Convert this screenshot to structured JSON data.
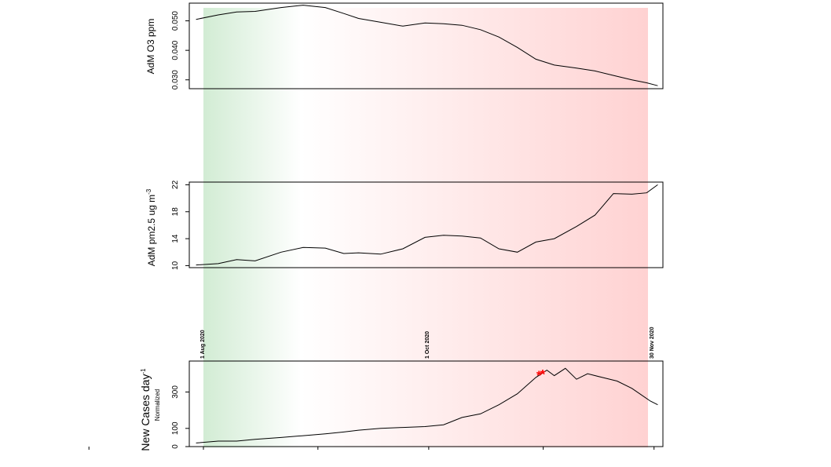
{
  "chart_data": [
    {
      "type": "line",
      "ylabel": "AdM O3 ppm",
      "yticks": [
        "0.030",
        "0.040",
        "0.050"
      ],
      "ylim": [
        0.027,
        0.056
      ],
      "x": [
        "2020-07-30",
        "2020-08-05",
        "2020-08-10",
        "2020-08-15",
        "2020-08-22",
        "2020-08-28",
        "2020-09-03",
        "2020-09-08",
        "2020-09-12",
        "2020-09-18",
        "2020-09-24",
        "2020-09-30",
        "2020-10-05",
        "2020-10-10",
        "2020-10-15",
        "2020-10-20",
        "2020-10-25",
        "2020-10-30",
        "2020-11-04",
        "2020-11-10",
        "2020-11-15",
        "2020-11-20",
        "2020-11-25",
        "2020-11-29",
        "2020-12-02"
      ],
      "values": [
        0.0505,
        0.052,
        0.053,
        0.0532,
        0.0545,
        0.0553,
        0.0545,
        0.0525,
        0.0508,
        0.0495,
        0.0482,
        0.0493,
        0.049,
        0.0485,
        0.047,
        0.0445,
        0.041,
        0.037,
        0.035,
        0.034,
        0.033,
        0.0315,
        0.03,
        0.029,
        0.028
      ]
    },
    {
      "type": "line",
      "ylabel": "AdM pm2.5 ug m",
      "ylabel_sup": "-3",
      "yticks": [
        "10",
        "14",
        "18",
        "22"
      ],
      "ylim": [
        9.7,
        22.4
      ],
      "x": [
        "2020-07-30",
        "2020-08-05",
        "2020-08-10",
        "2020-08-15",
        "2020-08-22",
        "2020-08-28",
        "2020-09-03",
        "2020-09-08",
        "2020-09-12",
        "2020-09-18",
        "2020-09-24",
        "2020-09-30",
        "2020-10-05",
        "2020-10-10",
        "2020-10-15",
        "2020-10-20",
        "2020-10-25",
        "2020-10-30",
        "2020-11-04",
        "2020-11-10",
        "2020-11-15",
        "2020-11-20",
        "2020-11-25",
        "2020-11-29",
        "2020-12-02"
      ],
      "values": [
        10.1,
        10.3,
        10.9,
        10.7,
        12.0,
        12.7,
        12.6,
        11.8,
        11.9,
        11.7,
        12.5,
        14.2,
        14.5,
        14.4,
        14.1,
        12.5,
        12.0,
        13.5,
        14.0,
        15.8,
        17.5,
        20.7,
        20.6,
        20.8,
        22.0
      ]
    },
    {
      "type": "line",
      "ylabel": "New Cases day",
      "ylabel_sup": "-1",
      "ylabel2": "Normalized",
      "yticks": [
        "0",
        "100",
        "300"
      ],
      "ylim": [
        0,
        470
      ],
      "date_labels": [
        "1 Aug 2020",
        "1 Oct 2020",
        "30 Nov 2020"
      ],
      "marker_symbol": "*",
      "marker_x": [
        "2020-10-31",
        "2020-11-01"
      ],
      "marker_y": [
        400,
        408
      ],
      "x": [
        "2020-07-30",
        "2020-08-05",
        "2020-08-10",
        "2020-08-15",
        "2020-08-22",
        "2020-08-28",
        "2020-09-03",
        "2020-09-08",
        "2020-09-12",
        "2020-09-18",
        "2020-09-24",
        "2020-09-30",
        "2020-10-05",
        "2020-10-10",
        "2020-10-15",
        "2020-10-20",
        "2020-10-25",
        "2020-10-30",
        "2020-11-02",
        "2020-11-04",
        "2020-11-07",
        "2020-11-10",
        "2020-11-13",
        "2020-11-17",
        "2020-11-21",
        "2020-11-25",
        "2020-11-30",
        "2020-12-02"
      ],
      "values": [
        20,
        30,
        30,
        40,
        50,
        60,
        70,
        80,
        90,
        100,
        105,
        110,
        120,
        160,
        180,
        230,
        290,
        380,
        420,
        390,
        430,
        370,
        400,
        380,
        360,
        320,
        250,
        230
      ]
    }
  ]
}
